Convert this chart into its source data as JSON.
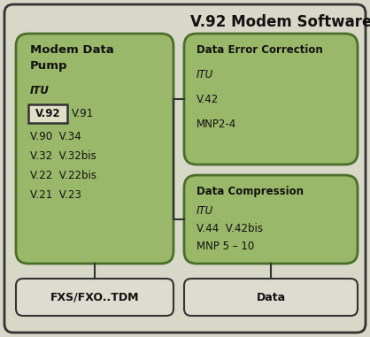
{
  "title": "V.92 Modem Software",
  "bg_color": "#d8d8c8",
  "outer_box_facecolor": "#d8d8c8",
  "outer_box_edge": "#333333",
  "green_box_color": "#9ab86a",
  "green_box_edge": "#4a6e2a",
  "white_box_color": "#dcdcd0",
  "white_box_edge": "#333333",
  "v92_box_color": "#e0e0c8",
  "v92_box_edge": "#333333",
  "title_fontsize": 12,
  "label_fontsize": 8.0,
  "modem_lines": [
    "Modem Data",
    "Pump",
    "ITU"
  ],
  "versions": [
    "V.92",
    "V.91",
    "V.90",
    "V.34",
    "V.32",
    "V.32bis",
    "V.22",
    "V.22bis",
    "V.21",
    "V.23"
  ],
  "dec_title": "Data Error Correction",
  "dec_items": [
    "ITU",
    "V.42",
    "MNP2-4"
  ],
  "dc_title": "Data Compression",
  "dc_items": [
    "ITU",
    "V.44  V.42bis",
    "MNP 5 – 10"
  ],
  "fxs_label": "FXS/FXO..TDM",
  "data_label": "Data"
}
